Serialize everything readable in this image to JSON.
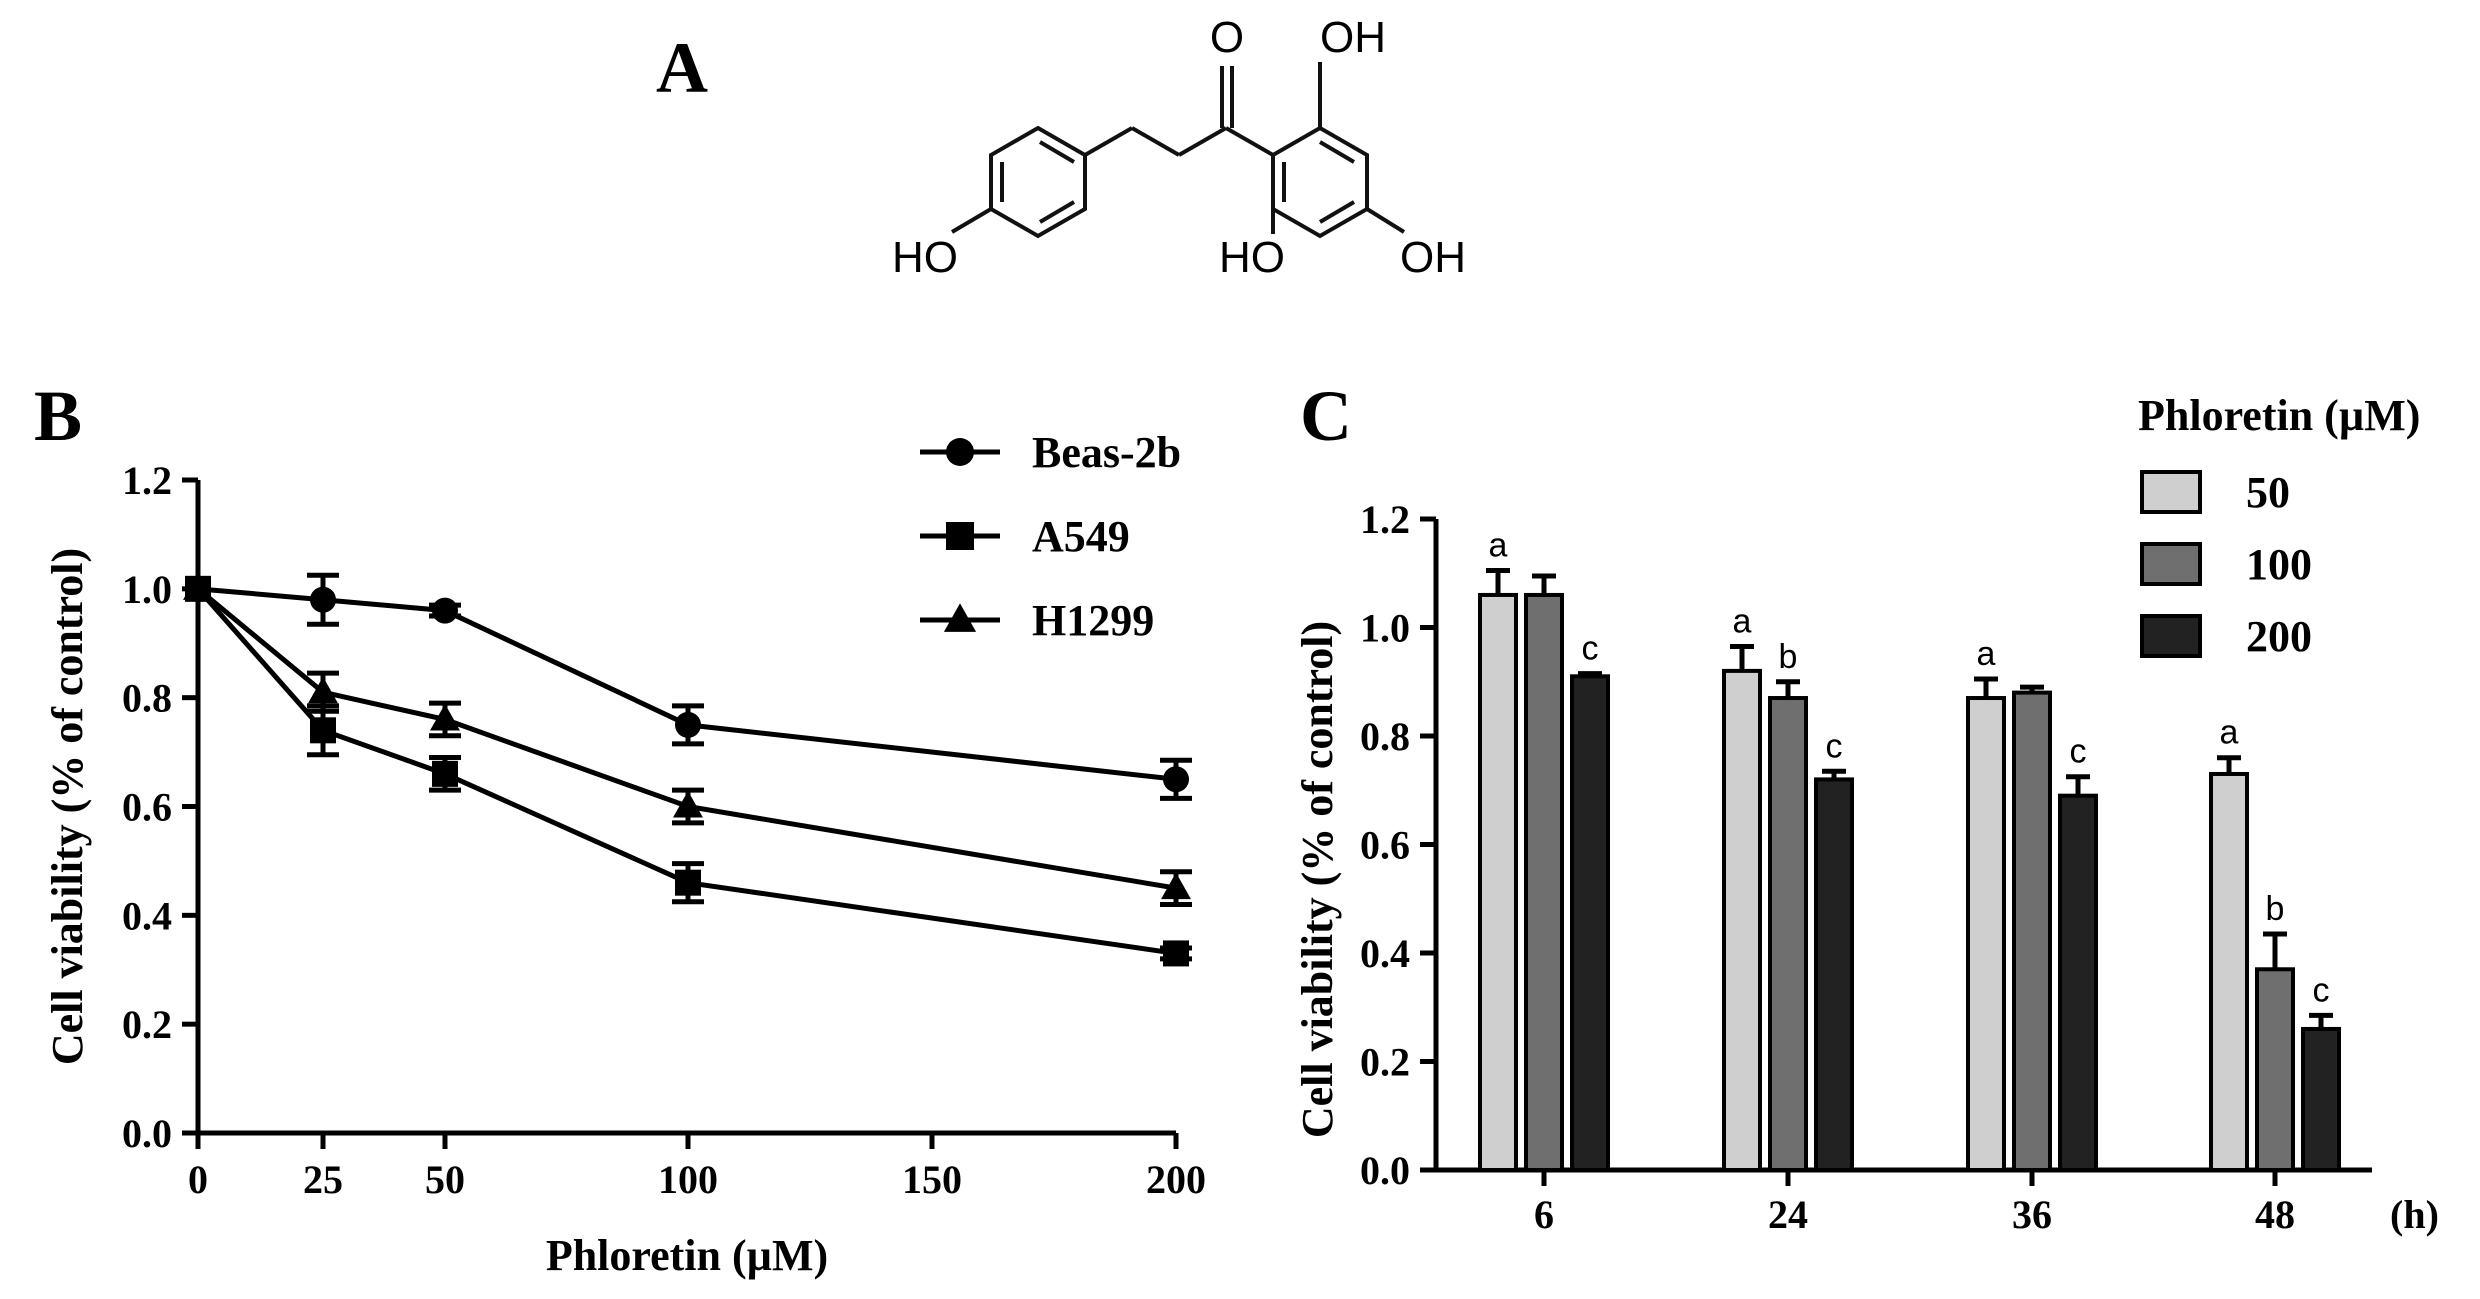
{
  "panels": {
    "a_label": "A",
    "b_label": "B",
    "c_label": "C"
  },
  "molecule": {
    "atom_labels": [
      "O",
      "OH",
      "HO",
      "HO",
      "OH"
    ]
  },
  "chart_data": [
    {
      "type": "line",
      "panel": "B",
      "title": "",
      "xlabel": "Phloretin (µM)",
      "ylabel": "Cell viability (% of control)",
      "x": [
        0,
        25,
        50,
        100,
        200
      ],
      "x_ticks": [
        "0",
        "25",
        "50",
        "100",
        "150",
        "200"
      ],
      "x_tick_values": [
        0,
        25,
        50,
        100,
        150,
        200
      ],
      "y_ticks": [
        "0.0",
        "0.2",
        "0.4",
        "0.6",
        "0.8",
        "1.0",
        "1.2"
      ],
      "ylim": [
        0,
        1.2
      ],
      "xlim": [
        0,
        200
      ],
      "x_scale": "piecewise-linear",
      "grid": false,
      "legend": "top-right",
      "series": [
        {
          "name": "Beas-2b",
          "marker": "circle",
          "values": [
            1.0,
            0.98,
            0.96,
            0.75,
            0.65
          ],
          "errors": [
            0,
            0.045,
            0.01,
            0.035,
            0.035
          ]
        },
        {
          "name": "A549",
          "marker": "square",
          "values": [
            1.0,
            0.74,
            0.66,
            0.46,
            0.33
          ],
          "errors": [
            0,
            0.045,
            0.03,
            0.035,
            0.01
          ]
        },
        {
          "name": "H1299",
          "marker": "triangle",
          "values": [
            1.0,
            0.81,
            0.76,
            0.6,
            0.45
          ],
          "errors": [
            0,
            0.035,
            0.03,
            0.03,
            0.03
          ]
        }
      ]
    },
    {
      "type": "bar",
      "panel": "C",
      "title": "",
      "xlabel": "(h)",
      "ylabel": "Cell viability (% of control)",
      "categories": [
        "6",
        "24",
        "36",
        "48"
      ],
      "y_ticks": [
        "0.0",
        "0.2",
        "0.4",
        "0.6",
        "0.8",
        "1.0",
        "1.2"
      ],
      "ylim": [
        0,
        1.2
      ],
      "grid": false,
      "legend": "top-right",
      "legend_title": "Phloretin (µM)",
      "series": [
        {
          "name": "50",
          "color": "#cfcfcf",
          "values": [
            1.06,
            0.92,
            0.87,
            0.73
          ],
          "errors": [
            0.045,
            0.045,
            0.035,
            0.03
          ],
          "letters": [
            "a",
            "a",
            "a",
            "a"
          ]
        },
        {
          "name": "100",
          "color": "#6f6f6f",
          "values": [
            1.06,
            0.87,
            0.88,
            0.37
          ],
          "errors": [
            0.035,
            0.03,
            0.01,
            0.065
          ],
          "letters": [
            "",
            "b",
            "",
            "b"
          ]
        },
        {
          "name": "200",
          "color": "#222222",
          "values": [
            0.91,
            0.72,
            0.69,
            0.26
          ],
          "errors": [
            0.005,
            0.015,
            0.035,
            0.025
          ],
          "letters": [
            "c",
            "c",
            "c",
            "c"
          ]
        }
      ]
    }
  ]
}
